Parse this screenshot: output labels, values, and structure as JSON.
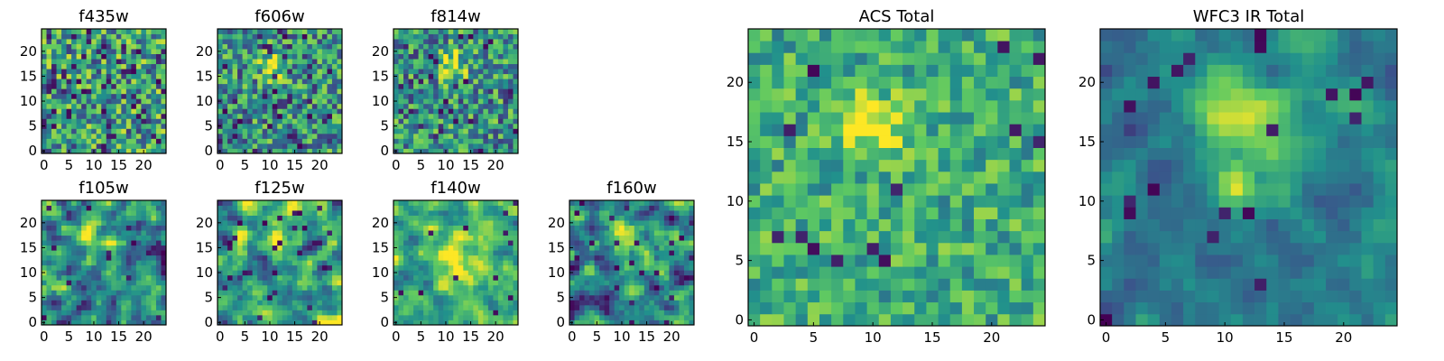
{
  "figure": {
    "colormap": "viridis",
    "colormap_stops": [
      "#440154",
      "#3b528b",
      "#21918c",
      "#5ec962",
      "#fde725"
    ],
    "axis_color": "#000000",
    "background": "#ffffff"
  },
  "chart_data": [
    {
      "type": "heatmap",
      "title": "f435w",
      "grid_shape": [
        25,
        25
      ],
      "xlim": [
        -0.5,
        24.5
      ],
      "ylim": [
        -0.5,
        24.5
      ],
      "xticks": [
        0,
        5,
        10,
        15,
        20
      ],
      "yticks": [
        0,
        5,
        10,
        15,
        20
      ],
      "values_description": "normalized intensity 0-1; mostly uniform noise with scattered dark pixels",
      "feature": {
        "center": [
          11,
          17
        ],
        "sigma": 3,
        "amplitude": 0.0
      },
      "noise": {
        "level": 0.75,
        "smooth": 0,
        "dark_fraction": 0.08,
        "base": 0.55
      }
    },
    {
      "type": "heatmap",
      "title": "f606w",
      "grid_shape": [
        25,
        25
      ],
      "xlim": [
        -0.5,
        24.5
      ],
      "ylim": [
        -0.5,
        24.5
      ],
      "xticks": [
        0,
        5,
        10,
        15,
        20
      ],
      "yticks": [
        0,
        5,
        10,
        15,
        20
      ],
      "values_description": "normalized intensity 0-1; faint bright source near (11,17)",
      "feature": {
        "center": [
          11,
          17
        ],
        "sigma": 2.2,
        "amplitude": 0.35
      },
      "noise": {
        "level": 0.7,
        "smooth": 0,
        "dark_fraction": 0.07,
        "base": 0.5
      }
    },
    {
      "type": "heatmap",
      "title": "f814w",
      "grid_shape": [
        25,
        25
      ],
      "xlim": [
        -0.5,
        24.5
      ],
      "ylim": [
        -0.5,
        24.5
      ],
      "xticks": [
        0,
        5,
        10,
        15,
        20
      ],
      "yticks": [
        0,
        5,
        10,
        15,
        20
      ],
      "values_description": "normalized intensity 0-1; bright source near (11,17)",
      "feature": {
        "center": [
          11,
          17
        ],
        "sigma": 2.2,
        "amplitude": 0.45
      },
      "noise": {
        "level": 0.7,
        "smooth": 0,
        "dark_fraction": 0.06,
        "base": 0.5
      }
    },
    {
      "type": "heatmap",
      "title": "f105w",
      "grid_shape": [
        25,
        25
      ],
      "xlim": [
        -0.5,
        24.5
      ],
      "ylim": [
        -0.5,
        24.5
      ],
      "xticks": [
        0,
        5,
        10,
        15,
        20
      ],
      "yticks": [
        0,
        5,
        10,
        15,
        20
      ],
      "values_description": "normalized intensity 0-1; smooth correlated noise with source near (11,17)",
      "feature": {
        "center": [
          11,
          17
        ],
        "sigma": 3,
        "amplitude": 0.3
      },
      "noise": {
        "level": 0.8,
        "smooth": 1,
        "dark_fraction": 0.03,
        "base": 0.5
      }
    },
    {
      "type": "heatmap",
      "title": "f125w",
      "grid_shape": [
        25,
        25
      ],
      "xlim": [
        -0.5,
        24.5
      ],
      "ylim": [
        -0.5,
        24.5
      ],
      "xticks": [
        0,
        5,
        10,
        15,
        20
      ],
      "yticks": [
        0,
        5,
        10,
        15,
        20
      ],
      "values_description": "normalized intensity 0-1; smooth correlated noise with faint source",
      "feature": {
        "center": [
          11,
          17
        ],
        "sigma": 3,
        "amplitude": 0.25
      },
      "noise": {
        "level": 0.8,
        "smooth": 1,
        "dark_fraction": 0.04,
        "base": 0.5
      }
    },
    {
      "type": "heatmap",
      "title": "f140w",
      "grid_shape": [
        25,
        25
      ],
      "xlim": [
        -0.5,
        24.5
      ],
      "ylim": [
        -0.5,
        24.5
      ],
      "xticks": [
        0,
        5,
        10,
        15,
        20
      ],
      "yticks": [
        0,
        5,
        10,
        15,
        20
      ],
      "values_description": "normalized intensity 0-1; bright broad source near (12,14), dark patch top-right",
      "feature": {
        "center": [
          12,
          15
        ],
        "sigma": 4,
        "amplitude": 0.35
      },
      "noise": {
        "level": 0.6,
        "smooth": 1,
        "dark_fraction": 0.02,
        "base": 0.62
      }
    },
    {
      "type": "heatmap",
      "title": "f160w",
      "grid_shape": [
        25,
        25
      ],
      "xlim": [
        -0.5,
        24.5
      ],
      "ylim": [
        -0.5,
        24.5
      ],
      "xticks": [
        0,
        5,
        10,
        15,
        20
      ],
      "yticks": [
        0,
        5,
        10,
        15,
        20
      ],
      "values_description": "normalized intensity 0-1; source near (11,17) and (11,12)",
      "feature": {
        "center": [
          11,
          17
        ],
        "sigma": 2.8,
        "amplitude": 0.35
      },
      "noise": {
        "level": 0.75,
        "smooth": 1,
        "dark_fraction": 0.04,
        "base": 0.48
      }
    },
    {
      "type": "heatmap",
      "title": "ACS Total",
      "grid_shape": [
        25,
        25
      ],
      "xlim": [
        -0.5,
        24.5
      ],
      "ylim": [
        -0.5,
        24.5
      ],
      "xticks": [
        0,
        5,
        10,
        15,
        20
      ],
      "yticks": [
        0,
        5,
        10,
        15,
        20
      ],
      "values_description": "normalized intensity 0-1; bright source centered near (10,16) on green noise",
      "feature": {
        "center": [
          10,
          16.5
        ],
        "sigma": 1.6,
        "amplitude": 0.5
      },
      "noise": {
        "level": 0.45,
        "smooth": 0,
        "dark_fraction": 0.02,
        "base": 0.62
      }
    },
    {
      "type": "heatmap",
      "title": "WFC3 IR Total",
      "grid_shape": [
        25,
        25
      ],
      "xlim": [
        -0.5,
        24.5
      ],
      "ylim": [
        -0.5,
        24.5
      ],
      "xticks": [
        0,
        5,
        10,
        15,
        20
      ],
      "yticks": [
        0,
        5,
        10,
        15,
        20
      ],
      "values_description": "normalized intensity 0-1; smooth bright source near (11,17) with secondary peak near (11,11)",
      "feature": {
        "center": [
          11,
          17
        ],
        "sigma": 2.6,
        "amplitude": 0.55,
        "secondary": {
          "center": [
            11,
            11.5
          ],
          "sigma": 1.2,
          "amplitude": 0.35
        }
      },
      "noise": {
        "level": 0.35,
        "smooth": 1,
        "dark_fraction": 0.02,
        "base": 0.42
      }
    }
  ]
}
